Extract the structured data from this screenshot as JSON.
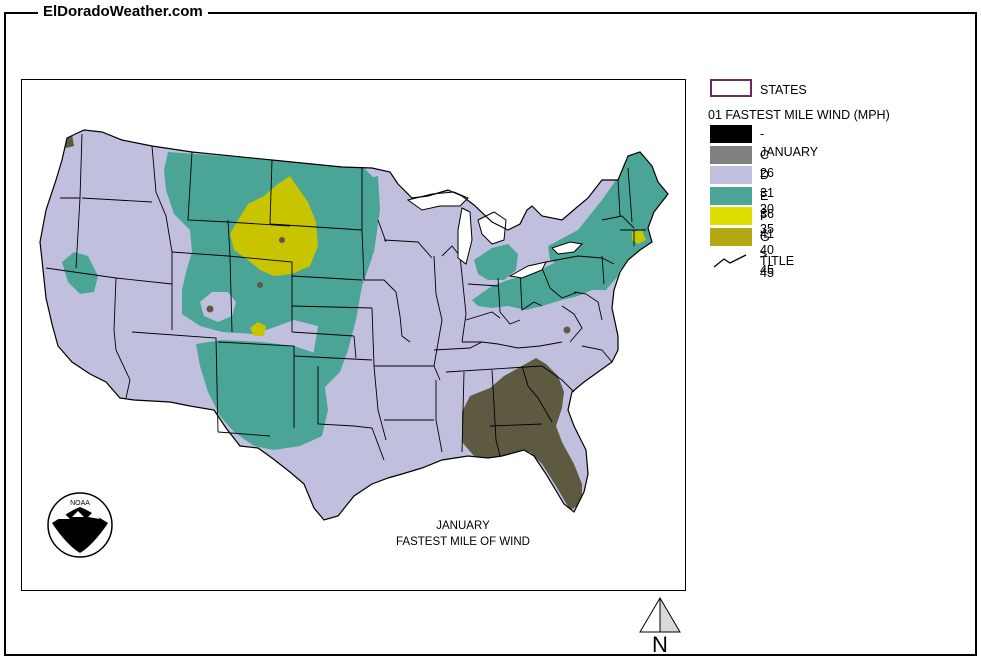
{
  "site_title": "ElDoradoWeather.com",
  "legend": {
    "states_label": "STATES",
    "heading": "01 FASTEST MILE WIND (MPH)",
    "items": [
      {
        "label": "- JANUARY -",
        "color": "#000000"
      },
      {
        "label": "C 26 - 30",
        "color": "#808080"
      },
      {
        "label": "D 31 - 35",
        "color": "#c0c0de"
      },
      {
        "label": "E 36 - 40",
        "color": "#4aa596"
      },
      {
        "label": "F 41 - 45",
        "color": "#dede00"
      },
      {
        "label": "G > 45",
        "color": "#b1a812"
      }
    ],
    "title_label": "TITLE"
  },
  "map": {
    "caption_line1": "JANUARY",
    "caption_line2": "FASTEST MILE OF WIND",
    "colors": {
      "states_fill": "#c0c0de",
      "zone_e": "#4aa596",
      "zone_f": "#c8c400",
      "zone_dark": "#5e5a42",
      "state_border": "#000000"
    },
    "logo_text": "NOAA",
    "north_label": "N"
  }
}
